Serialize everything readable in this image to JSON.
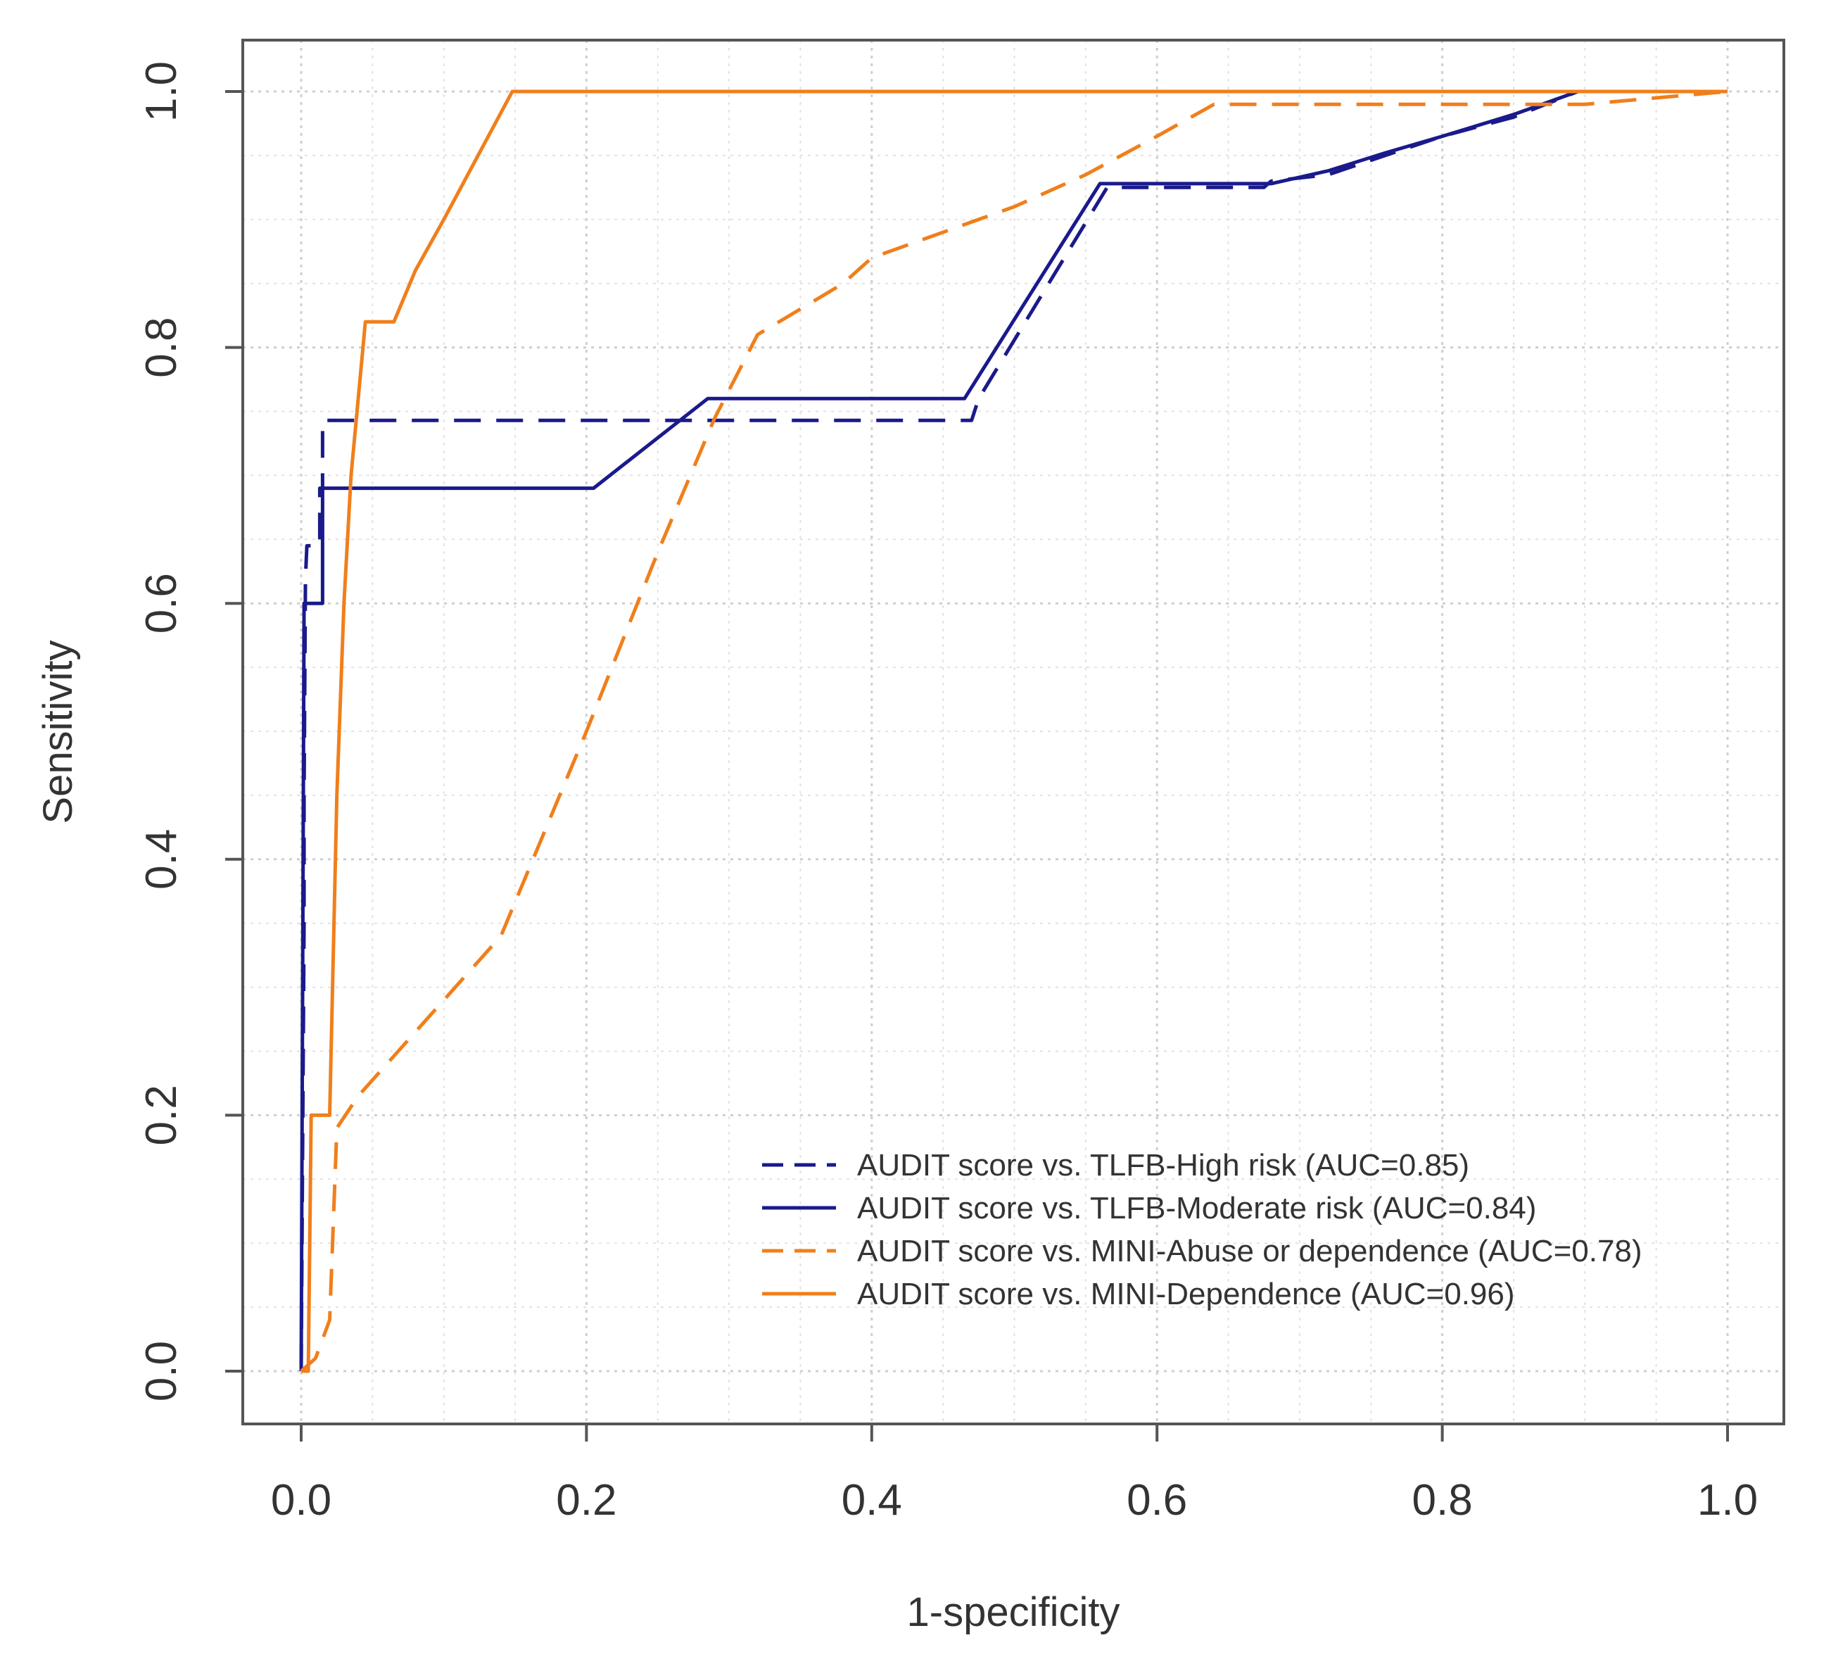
{
  "chart_data": {
    "type": "line",
    "title": "",
    "xlabel": "1-specificity",
    "ylabel": "Sensitivity",
    "xlim": [
      0,
      1
    ],
    "ylim": [
      0,
      1
    ],
    "xticks": [
      "0.0",
      "0.2",
      "0.4",
      "0.6",
      "0.8",
      "1.0"
    ],
    "yticks": [
      "0.0",
      "0.2",
      "0.4",
      "0.6",
      "0.8",
      "1.0"
    ],
    "grid": true,
    "legend_position": "bottom-right",
    "series": [
      {
        "name": "AUDIT score vs. TLFB-High risk (AUC=0.85)",
        "color": "#1a1a8c",
        "dash": "dashed",
        "points": [
          [
            0,
            0
          ],
          [
            0.002,
            0.35
          ],
          [
            0.002,
            0.45
          ],
          [
            0.003,
            0.62
          ],
          [
            0.004,
            0.645
          ],
          [
            0.013,
            0.645
          ],
          [
            0.013,
            0.69
          ],
          [
            0.015,
            0.69
          ],
          [
            0.015,
            0.743
          ],
          [
            0.47,
            0.743
          ],
          [
            0.475,
            0.76
          ],
          [
            0.565,
            0.925
          ],
          [
            0.675,
            0.925
          ],
          [
            0.68,
            0.93
          ],
          [
            0.72,
            0.935
          ],
          [
            0.76,
            0.95
          ],
          [
            0.8,
            0.965
          ],
          [
            0.85,
            0.98
          ],
          [
            0.895,
            1.0
          ],
          [
            1.0,
            1.0
          ]
        ]
      },
      {
        "name": "AUDIT score vs. TLFB-Moderate risk (AUC=0.84)",
        "color": "#1a1a8c",
        "dash": "solid",
        "points": [
          [
            0,
            0
          ],
          [
            0.002,
            0.6
          ],
          [
            0.015,
            0.6
          ],
          [
            0.015,
            0.69
          ],
          [
            0.205,
            0.69
          ],
          [
            0.285,
            0.76
          ],
          [
            0.465,
            0.76
          ],
          [
            0.56,
            0.928
          ],
          [
            0.68,
            0.928
          ],
          [
            0.72,
            0.938
          ],
          [
            0.76,
            0.952
          ],
          [
            0.8,
            0.965
          ],
          [
            0.85,
            0.982
          ],
          [
            0.895,
            1.0
          ],
          [
            1.0,
            1.0
          ]
        ]
      },
      {
        "name": "AUDIT score vs. MINI-Abuse or dependence (AUC=0.78)",
        "color": "#f07f1b",
        "dash": "dashed",
        "points": [
          [
            0,
            0
          ],
          [
            0.01,
            0.01
          ],
          [
            0.02,
            0.04
          ],
          [
            0.025,
            0.19
          ],
          [
            0.04,
            0.215
          ],
          [
            0.08,
            0.265
          ],
          [
            0.14,
            0.34
          ],
          [
            0.2,
            0.5
          ],
          [
            0.25,
            0.64
          ],
          [
            0.29,
            0.745
          ],
          [
            0.32,
            0.81
          ],
          [
            0.38,
            0.85
          ],
          [
            0.4,
            0.87
          ],
          [
            0.5,
            0.91
          ],
          [
            0.55,
            0.935
          ],
          [
            0.6,
            0.965
          ],
          [
            0.64,
            0.99
          ],
          [
            0.85,
            0.99
          ],
          [
            0.9,
            0.99
          ],
          [
            1.0,
            1.0
          ]
        ]
      },
      {
        "name": "AUDIT score vs. MINI-Dependence (AUC=0.96)",
        "color": "#f07f1b",
        "dash": "solid",
        "points": [
          [
            0,
            0
          ],
          [
            0.005,
            0.0
          ],
          [
            0.007,
            0.2
          ],
          [
            0.02,
            0.2
          ],
          [
            0.025,
            0.45
          ],
          [
            0.03,
            0.6
          ],
          [
            0.035,
            0.7
          ],
          [
            0.045,
            0.82
          ],
          [
            0.065,
            0.82
          ],
          [
            0.08,
            0.86
          ],
          [
            0.1,
            0.9
          ],
          [
            0.148,
            1.0
          ],
          [
            1.0,
            1.0
          ]
        ]
      }
    ]
  }
}
